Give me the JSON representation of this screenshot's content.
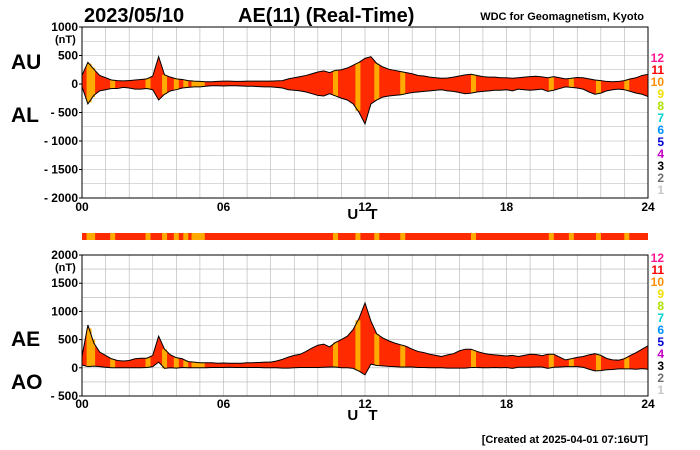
{
  "header": {
    "date": "2023/05/10",
    "title": "AE(11) (Real-Time)",
    "organization": "WDC for Geomagnetism, Kyoto"
  },
  "footer": "[Created at 2025-04-01 07:16UT]",
  "colors": {
    "fill": "#ff2a00",
    "highlight": "#ffaa00",
    "grid": "#b4b4b4",
    "outline": "#000000"
  },
  "activity_scale": {
    "levels": [
      "12",
      "11",
      "10",
      "9",
      "8",
      "7",
      "6",
      "5",
      "4",
      "3",
      "2",
      "1"
    ],
    "colors": [
      "#ff1493",
      "#ff0000",
      "#ff8c00",
      "#f0e000",
      "#b0e000",
      "#00d0d0",
      "#0090ff",
      "#0000d0",
      "#c000c0",
      "#000000",
      "#707070",
      "#c8c8c8"
    ]
  },
  "chart_data": [
    {
      "type": "area",
      "panel": "upper",
      "series_names": [
        "AU",
        "AL"
      ],
      "ylabel_unit": "(nT)",
      "ylim": [
        -2000,
        1000
      ],
      "yticks": [
        "1000",
        "500",
        "0",
        "- 500",
        "- 1000",
        "- 1500",
        "- 2000"
      ],
      "ytick_values": [
        1000,
        500,
        0,
        -500,
        -1000,
        -1500,
        -2000
      ],
      "xlabel": "U T",
      "xlim": [
        0,
        24
      ],
      "xticks": [
        "00",
        "06",
        "12",
        "18",
        "24"
      ],
      "xtick_values": [
        0,
        6,
        12,
        18,
        24
      ],
      "grid": true,
      "x": [
        0,
        0.25,
        0.5,
        0.75,
        1,
        1.25,
        1.5,
        1.75,
        2,
        2.25,
        2.5,
        2.75,
        3,
        3.25,
        3.5,
        3.75,
        4,
        4.25,
        4.5,
        4.75,
        5,
        5.25,
        5.5,
        5.75,
        6,
        6.25,
        6.5,
        6.75,
        7,
        7.25,
        7.5,
        7.75,
        8,
        8.25,
        8.5,
        8.75,
        9,
        9.25,
        9.5,
        9.75,
        10,
        10.25,
        10.5,
        10.75,
        11,
        11.25,
        11.5,
        11.75,
        12,
        12.25,
        12.5,
        12.75,
        13,
        13.25,
        13.5,
        13.75,
        14,
        14.25,
        14.5,
        14.75,
        15,
        15.25,
        15.5,
        15.75,
        16,
        16.25,
        16.5,
        16.75,
        17,
        17.25,
        17.5,
        17.75,
        18,
        18.25,
        18.5,
        18.75,
        19,
        19.25,
        19.5,
        19.75,
        20,
        20.25,
        20.5,
        20.75,
        21,
        21.25,
        21.5,
        21.75,
        22,
        22.25,
        22.5,
        22.75,
        23,
        23.25,
        23.5,
        23.75,
        24
      ],
      "AU": [
        150,
        380,
        260,
        150,
        110,
        70,
        60,
        55,
        60,
        70,
        80,
        90,
        140,
        480,
        160,
        120,
        90,
        80,
        60,
        50,
        45,
        40,
        40,
        45,
        50,
        50,
        45,
        45,
        50,
        50,
        50,
        50,
        50,
        55,
        60,
        90,
        110,
        130,
        150,
        180,
        210,
        230,
        200,
        240,
        250,
        280,
        330,
        380,
        450,
        480,
        360,
        300,
        260,
        240,
        220,
        200,
        180,
        150,
        140,
        120,
        110,
        100,
        105,
        120,
        140,
        160,
        170,
        150,
        130,
        120,
        120,
        110,
        110,
        100,
        110,
        120,
        130,
        135,
        125,
        110,
        130,
        110,
        90,
        100,
        115,
        110,
        90,
        70,
        60,
        45,
        40,
        45,
        60,
        90,
        110,
        150,
        170
      ],
      "AL": [
        -50,
        -350,
        -200,
        -120,
        -100,
        -80,
        -80,
        -60,
        -70,
        -90,
        -90,
        -80,
        -100,
        -280,
        -180,
        -120,
        -100,
        -70,
        -60,
        -50,
        -50,
        -40,
        -30,
        -30,
        -35,
        -30,
        -30,
        -35,
        -40,
        -40,
        -45,
        -50,
        -50,
        -60,
        -70,
        -100,
        -110,
        -120,
        -140,
        -170,
        -200,
        -210,
        -170,
        -210,
        -250,
        -280,
        -350,
        -500,
        -700,
        -350,
        -280,
        -230,
        -210,
        -200,
        -190,
        -170,
        -150,
        -140,
        -130,
        -120,
        -110,
        -100,
        -120,
        -130,
        -150,
        -170,
        -160,
        -140,
        -130,
        -120,
        -110,
        -110,
        -100,
        -120,
        -90,
        -100,
        -110,
        -100,
        -90,
        -130,
        -110,
        -80,
        -50,
        -60,
        -70,
        -90,
        -140,
        -180,
        -160,
        -120,
        -100,
        -90,
        -100,
        -130,
        -160,
        -180,
        -220
      ],
      "highlight_bands_ut": [
        0.3,
        0.45,
        1.3,
        2.8,
        3.5,
        4.0,
        4.4,
        4.75,
        4.95,
        5.1,
        10.75,
        11.7,
        12.5,
        13.6,
        16.6,
        19.9,
        20.75,
        21.9,
        23.1
      ]
    },
    {
      "type": "area",
      "panel": "lower",
      "series_names": [
        "AE",
        "AO"
      ],
      "ylabel_unit": "(nT)",
      "ylim": [
        -500,
        2000
      ],
      "yticks": [
        "2000",
        "1500",
        "1000",
        "500",
        "0",
        "- 500"
      ],
      "ytick_values": [
        2000,
        1500,
        1000,
        500,
        0,
        -500
      ],
      "xlabel": "U T",
      "xlim": [
        0,
        24
      ],
      "xticks": [
        "00",
        "06",
        "12",
        "18",
        "24"
      ],
      "xtick_values": [
        0,
        6,
        12,
        18,
        24
      ],
      "grid": true,
      "x": [
        0,
        0.25,
        0.5,
        0.75,
        1,
        1.25,
        1.5,
        1.75,
        2,
        2.25,
        2.5,
        2.75,
        3,
        3.25,
        3.5,
        3.75,
        4,
        4.25,
        4.5,
        4.75,
        5,
        5.25,
        5.5,
        5.75,
        6,
        6.25,
        6.5,
        6.75,
        7,
        7.25,
        7.5,
        7.75,
        8,
        8.25,
        8.5,
        8.75,
        9,
        9.25,
        9.5,
        9.75,
        10,
        10.25,
        10.5,
        10.75,
        11,
        11.25,
        11.5,
        11.75,
        12,
        12.25,
        12.5,
        12.75,
        13,
        13.25,
        13.5,
        13.75,
        14,
        14.25,
        14.5,
        14.75,
        15,
        15.25,
        15.5,
        15.75,
        16,
        16.25,
        16.5,
        16.75,
        17,
        17.25,
        17.5,
        17.75,
        18,
        18.25,
        18.5,
        18.75,
        19,
        19.25,
        19.5,
        19.75,
        20,
        20.25,
        20.5,
        20.75,
        21,
        21.25,
        21.5,
        21.75,
        22,
        22.25,
        22.5,
        22.75,
        23,
        23.25,
        23.5,
        23.75,
        24
      ],
      "AE": [
        200,
        760,
        440,
        280,
        220,
        160,
        130,
        120,
        130,
        160,
        170,
        170,
        220,
        560,
        330,
        230,
        180,
        160,
        110,
        100,
        90,
        90,
        90,
        80,
        85,
        80,
        80,
        80,
        90,
        90,
        95,
        100,
        100,
        120,
        150,
        190,
        220,
        240,
        290,
        350,
        400,
        420,
        370,
        450,
        500,
        560,
        680,
        880,
        1150,
        830,
        600,
        530,
        480,
        440,
        410,
        380,
        330,
        290,
        270,
        240,
        220,
        200,
        230,
        250,
        300,
        330,
        330,
        290,
        260,
        240,
        230,
        220,
        210,
        220,
        200,
        220,
        240,
        235,
        215,
        240,
        240,
        190,
        140,
        160,
        185,
        200,
        230,
        250,
        220,
        165,
        140,
        135,
        160,
        220,
        270,
        330,
        390
      ],
      "AO": [
        50,
        20,
        30,
        20,
        10,
        0,
        0,
        0,
        0,
        0,
        0,
        5,
        20,
        100,
        -10,
        0,
        -5,
        5,
        0,
        0,
        0,
        0,
        5,
        5,
        5,
        10,
        5,
        5,
        5,
        5,
        5,
        0,
        0,
        0,
        -5,
        -5,
        0,
        5,
        5,
        5,
        5,
        10,
        15,
        15,
        0,
        0,
        -10,
        -60,
        -125,
        65,
        40,
        35,
        25,
        20,
        15,
        15,
        15,
        5,
        5,
        0,
        0,
        0,
        -5,
        -5,
        -5,
        -5,
        5,
        5,
        0,
        0,
        5,
        0,
        5,
        -10,
        10,
        10,
        10,
        15,
        15,
        -10,
        10,
        15,
        20,
        20,
        20,
        10,
        -25,
        -55,
        -50,
        -35,
        -30,
        -20,
        -20,
        -20,
        -25,
        -15,
        -25
      ],
      "highlight_bands_ut": [
        0.3,
        0.45,
        1.3,
        2.8,
        3.5,
        4.0,
        4.4,
        4.75,
        4.95,
        5.1,
        10.75,
        11.7,
        12.5,
        13.6,
        16.6,
        19.9,
        20.75,
        21.9,
        23.1
      ]
    }
  ]
}
